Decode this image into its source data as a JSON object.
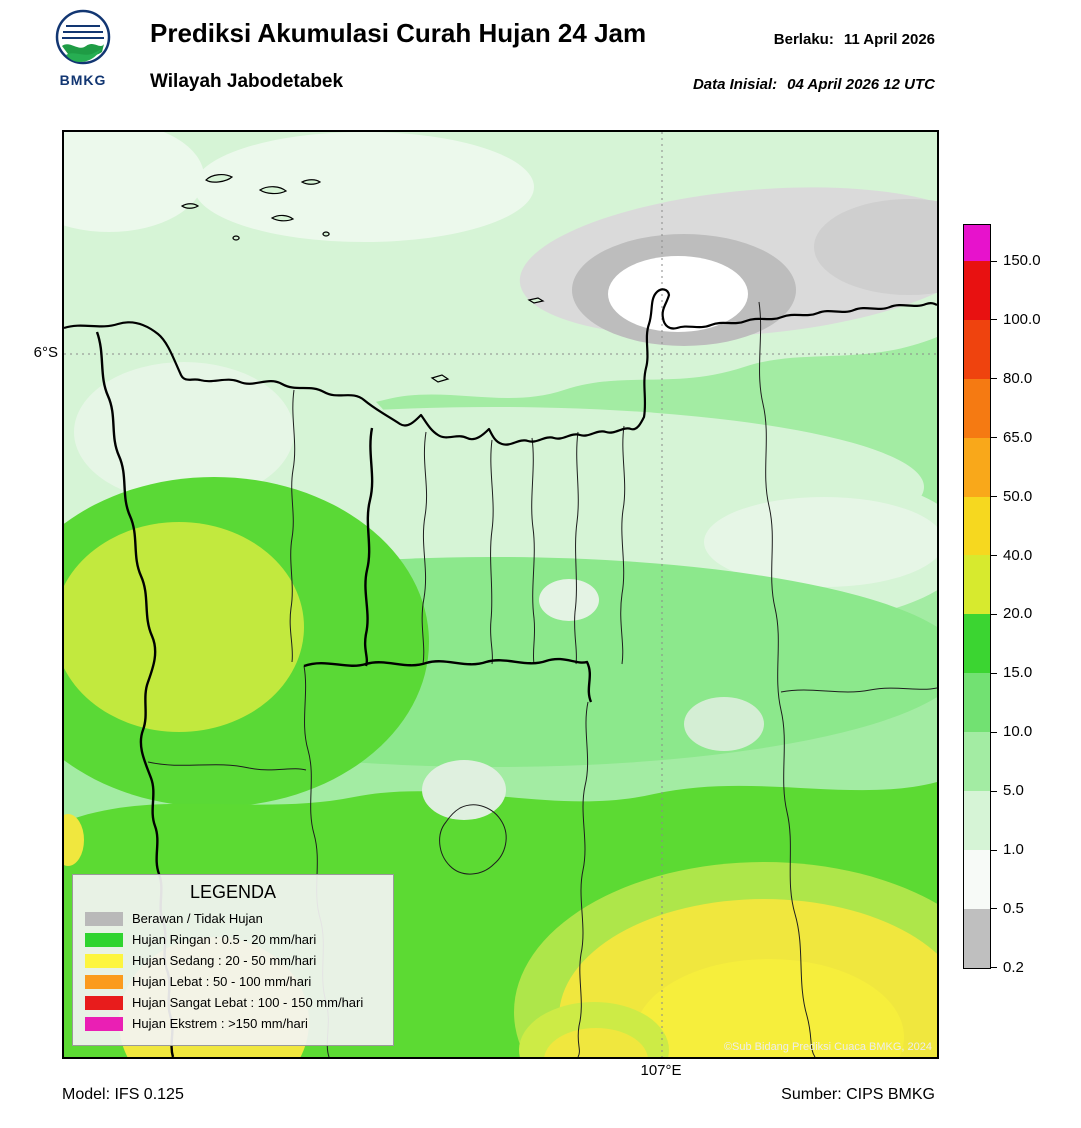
{
  "header": {
    "logo_text": "BMKG",
    "title": "Prediksi Akumulasi Curah Hujan 24 Jam",
    "subtitle": "Wilayah Jabodetabek",
    "valid_label": "Berlaku:",
    "valid_value": "11 April 2026",
    "init_label": "Data Inisial:",
    "init_value": "04 April 2026 12 UTC"
  },
  "map": {
    "lat_tick": "6°S",
    "lon_tick": "107°E",
    "copyright": "©Sub Bidang Prediksi Cuaca BMKG, 2024"
  },
  "legend": {
    "title": "LEGENDA",
    "items": [
      {
        "label": "Berawan / Tidak Hujan",
        "color": "#b9b9b9"
      },
      {
        "label": "Hujan Ringan : 0.5 - 20 mm/hari",
        "color": "#2fd42f"
      },
      {
        "label": "Hujan Sedang : 20 - 50 mm/hari",
        "color": "#fdf53e"
      },
      {
        "label": "Hujan Lebat : 50 - 100 mm/hari",
        "color": "#fb9b1d"
      },
      {
        "label": "Hujan Sangat Lebat : 100 - 150 mm/hari",
        "color": "#e81c1c"
      },
      {
        "label": "Hujan Ekstrem : >150 mm/hari",
        "color": "#ea1fb4"
      }
    ]
  },
  "colorbar": {
    "ticks": [
      "150.0",
      "100.0",
      "80.0",
      "65.0",
      "50.0",
      "40.0",
      "20.0",
      "15.0",
      "10.0",
      "5.0",
      "1.0",
      "0.5",
      "0.2"
    ],
    "segments_top_to_bottom": [
      "#e712cc",
      "#e81111",
      "#ef430e",
      "#f57a12",
      "#f9a81a",
      "#f6d81f",
      "#d7ea2e",
      "#3bd531",
      "#72e172",
      "#a3eca3",
      "#d6f4d6",
      "#f7faf7",
      "#bfbfbf"
    ]
  },
  "footer": {
    "model": "Model: IFS 0.125",
    "source": "Sumber: CIPS BMKG"
  }
}
